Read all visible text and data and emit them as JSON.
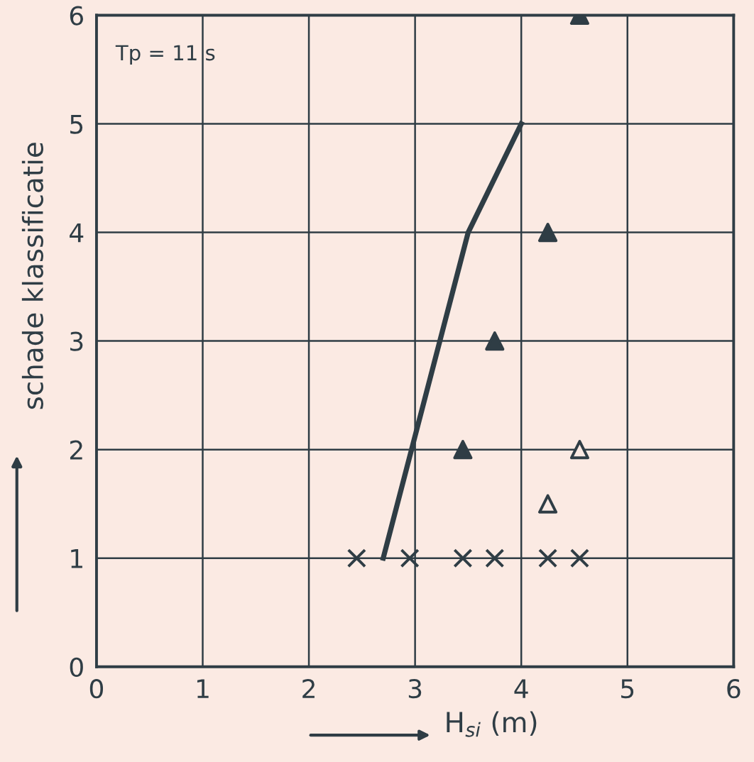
{
  "chart_data": {
    "type": "scatter",
    "xlabel": "H$_{si}$ (m)",
    "ylabel": "schade klassificatie",
    "annotations": [
      "Tp = 11 s"
    ],
    "xlim": [
      0,
      6
    ],
    "ylim": [
      0,
      6
    ],
    "xticks": [
      0,
      1,
      2,
      3,
      4,
      5,
      6
    ],
    "yticks": [
      0,
      1,
      2,
      3,
      4,
      5,
      6
    ],
    "grid": true,
    "series": [
      {
        "type": "line",
        "color": "#2f3d45",
        "marker": "none",
        "line_style": "solid",
        "x": [
          2.7,
          3.5,
          4.0
        ],
        "values": [
          1,
          4,
          5
        ]
      },
      {
        "color": "#2f3d45",
        "marker": "triangle",
        "x": [
          4.55,
          4.25,
          3.75,
          3.45
        ],
        "values": [
          6,
          4,
          3,
          2
        ]
      },
      {
        "color": "#fbeae3",
        "marker": "triangle",
        "x": [
          4.55,
          4.25
        ],
        "values": [
          2,
          1.5
        ]
      },
      {
        "color": "#2f3d45",
        "marker": "cross",
        "x": [
          2.45,
          2.95,
          3.45,
          3.75,
          4.25,
          4.55
        ],
        "values": [
          1,
          1,
          1,
          1,
          1,
          1
        ]
      }
    ]
  }
}
